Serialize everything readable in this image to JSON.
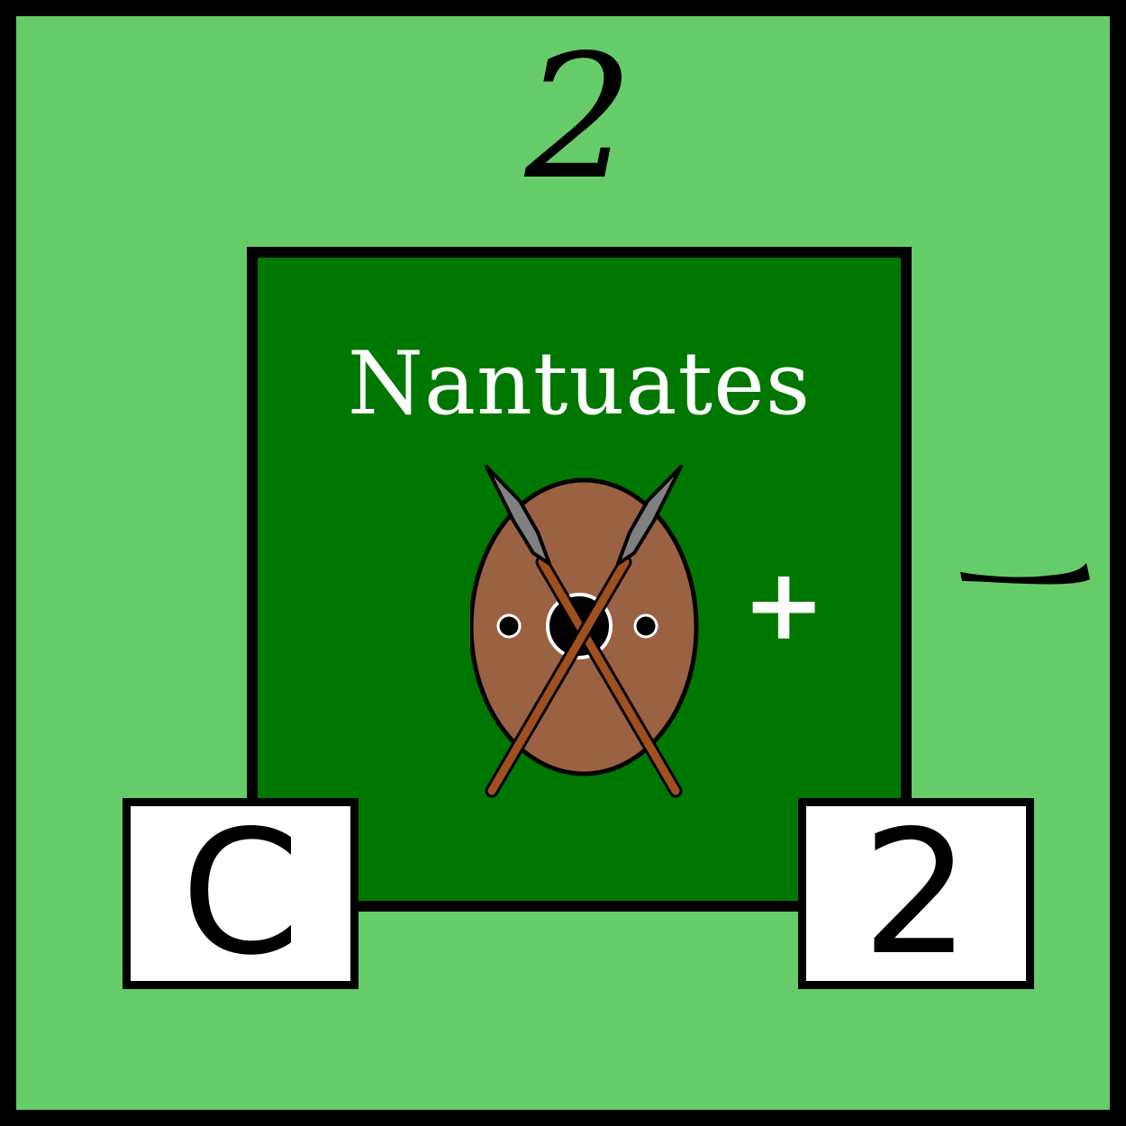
{
  "counter": {
    "top_value": "2",
    "unit_name": "Nantuates",
    "modifier_plus": "+",
    "modifier_minus_icon": "minus-dash-icon",
    "emblem_icon": "shield-crossed-spears-icon",
    "left_stat": "C",
    "right_stat": "2"
  },
  "colors": {
    "outer_background": "#66cc6a",
    "unit_background": "#007700",
    "border": "#000000",
    "shield": "#9a6242",
    "spear_shaft": "#a0501e",
    "spear_head": "#808080",
    "text_light": "#ffffff",
    "stat_box": "#ffffff"
  }
}
